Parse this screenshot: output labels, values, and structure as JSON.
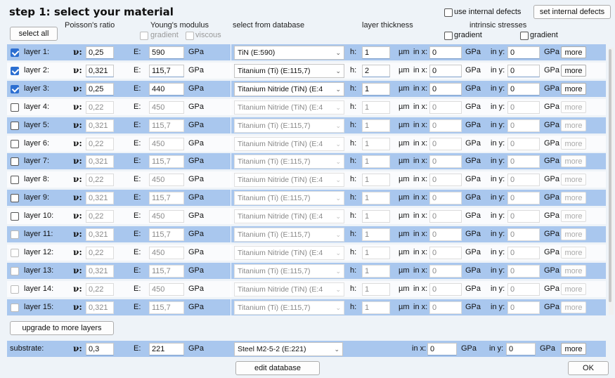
{
  "title": "step 1: select your material",
  "header": {
    "select_all": "select all",
    "poisson": "Poisson's ratio",
    "young": "Young's modulus",
    "gradient": "gradient",
    "viscous": "viscous",
    "database": "select from database",
    "thickness": "layer thickness",
    "stresses": "intrinsic stresses",
    "gradient_x": "gradient",
    "gradient_y": "gradient",
    "use_defects": "use internal defects",
    "set_defects": "set internal defects"
  },
  "units": {
    "nu": "ν:",
    "e": "E:",
    "gpa": "GPa",
    "h": "h:",
    "um": "µm",
    "inx": "in x:",
    "iny": "in y:",
    "more": "more"
  },
  "layers": [
    {
      "label": "layer 1:",
      "nu": "0,25",
      "e": "590",
      "material": "TiN  (E:590)",
      "h": "1",
      "sx": "0",
      "sy": "0",
      "checked": true,
      "enabled": true
    },
    {
      "label": "layer 2:",
      "nu": "0,321",
      "e": "115,7",
      "material": "Titanium (Ti)  (E:115,7)",
      "h": "2",
      "sx": "0",
      "sy": "0",
      "checked": true,
      "enabled": true
    },
    {
      "label": "layer 3:",
      "nu": "0,25",
      "e": "440",
      "material": "Titanium Nitride (TiN)  (E:4",
      "h": "1",
      "sx": "0",
      "sy": "0",
      "checked": true,
      "enabled": true
    },
    {
      "label": "layer 4:",
      "nu": "0,22",
      "e": "450",
      "material": "Titanium Nitride (TiN)  (E:4",
      "h": "1",
      "sx": "0",
      "sy": "0",
      "checked": false,
      "enabled": false
    },
    {
      "label": "layer 5:",
      "nu": "0,321",
      "e": "115,7",
      "material": "Titanium (Ti)  (E:115,7)",
      "h": "1",
      "sx": "0",
      "sy": "0",
      "checked": false,
      "enabled": false
    },
    {
      "label": "layer 6:",
      "nu": "0,22",
      "e": "450",
      "material": "Titanium Nitride (TiN)  (E:4",
      "h": "1",
      "sx": "0",
      "sy": "0",
      "checked": false,
      "enabled": false
    },
    {
      "label": "layer 7:",
      "nu": "0,321",
      "e": "115,7",
      "material": "Titanium (Ti)  (E:115,7)",
      "h": "1",
      "sx": "0",
      "sy": "0",
      "checked": false,
      "enabled": false
    },
    {
      "label": "layer 8:",
      "nu": "0,22",
      "e": "450",
      "material": "Titanium Nitride (TiN)  (E:4",
      "h": "1",
      "sx": "0",
      "sy": "0",
      "checked": false,
      "enabled": false
    },
    {
      "label": "layer 9:",
      "nu": "0,321",
      "e": "115,7",
      "material": "Titanium (Ti)  (E:115,7)",
      "h": "1",
      "sx": "0",
      "sy": "0",
      "checked": false,
      "enabled": false
    },
    {
      "label": "layer 10:",
      "nu": "0,22",
      "e": "450",
      "material": "Titanium Nitride (TiN)  (E:4",
      "h": "1",
      "sx": "0",
      "sy": "0",
      "checked": false,
      "enabled": false
    },
    {
      "label": "layer 11:",
      "nu": "0,321",
      "e": "115,7",
      "material": "Titanium (Ti)  (E:115,7)",
      "h": "1",
      "sx": "0",
      "sy": "0",
      "checked": false,
      "enabled": false
    },
    {
      "label": "layer 12:",
      "nu": "0,22",
      "e": "450",
      "material": "Titanium Nitride (TiN)  (E:4",
      "h": "1",
      "sx": "0",
      "sy": "0",
      "checked": false,
      "enabled": false
    },
    {
      "label": "layer 13:",
      "nu": "0,321",
      "e": "115,7",
      "material": "Titanium (Ti)  (E:115,7)",
      "h": "1",
      "sx": "0",
      "sy": "0",
      "checked": false,
      "enabled": false
    },
    {
      "label": "layer 14:",
      "nu": "0,22",
      "e": "450",
      "material": "Titanium Nitride (TiN)  (E:4",
      "h": "1",
      "sx": "0",
      "sy": "0",
      "checked": false,
      "enabled": false
    },
    {
      "label": "layer 15:",
      "nu": "0,321",
      "e": "115,7",
      "material": "Titanium (Ti)  (E:115,7)",
      "h": "1",
      "sx": "0",
      "sy": "0",
      "checked": false,
      "enabled": false
    }
  ],
  "upgrade": "upgrade to more layers",
  "substrate": {
    "label": "substrate:",
    "nu": "0,3",
    "e": "221",
    "material": "Steel M2-5-2  (E:221)",
    "sx": "0",
    "sy": "0"
  },
  "edit_database": "edit database",
  "ok": "OK",
  "colors": {
    "row_blue": "#a9c7ee",
    "row_white": "#fafbfd",
    "checkbox_accent": "#2c6fd1"
  }
}
